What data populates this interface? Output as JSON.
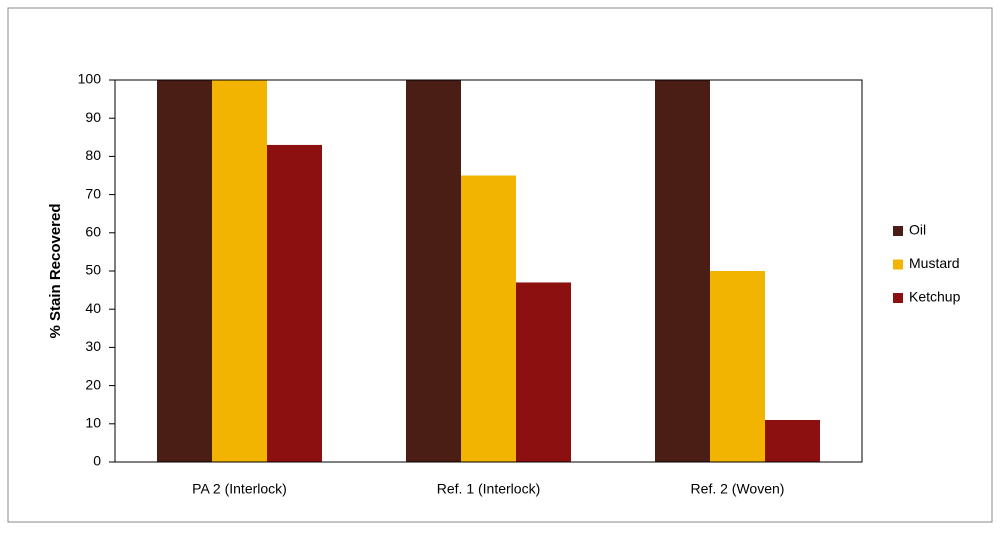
{
  "chart_data": {
    "type": "bar",
    "y_label": "%  Stain Recovered",
    "categories": [
      "PA 2 (Interlock)",
      "Ref. 1 (Interlock)",
      "Ref. 2 (Woven)"
    ],
    "series": [
      {
        "name": "Oil",
        "color": "#4a1e14",
        "values": [
          100,
          100,
          100
        ]
      },
      {
        "name": "Mustard",
        "color": "#f2b400",
        "values": [
          100,
          75,
          50
        ]
      },
      {
        "name": "Ketchup",
        "color": "#8c1010",
        "values": [
          83,
          47,
          11
        ]
      }
    ],
    "ylim": [
      0,
      100
    ],
    "yticks": [
      0,
      10,
      20,
      30,
      40,
      50,
      60,
      70,
      80,
      90,
      100
    ],
    "grid": false,
    "legend": "right"
  }
}
